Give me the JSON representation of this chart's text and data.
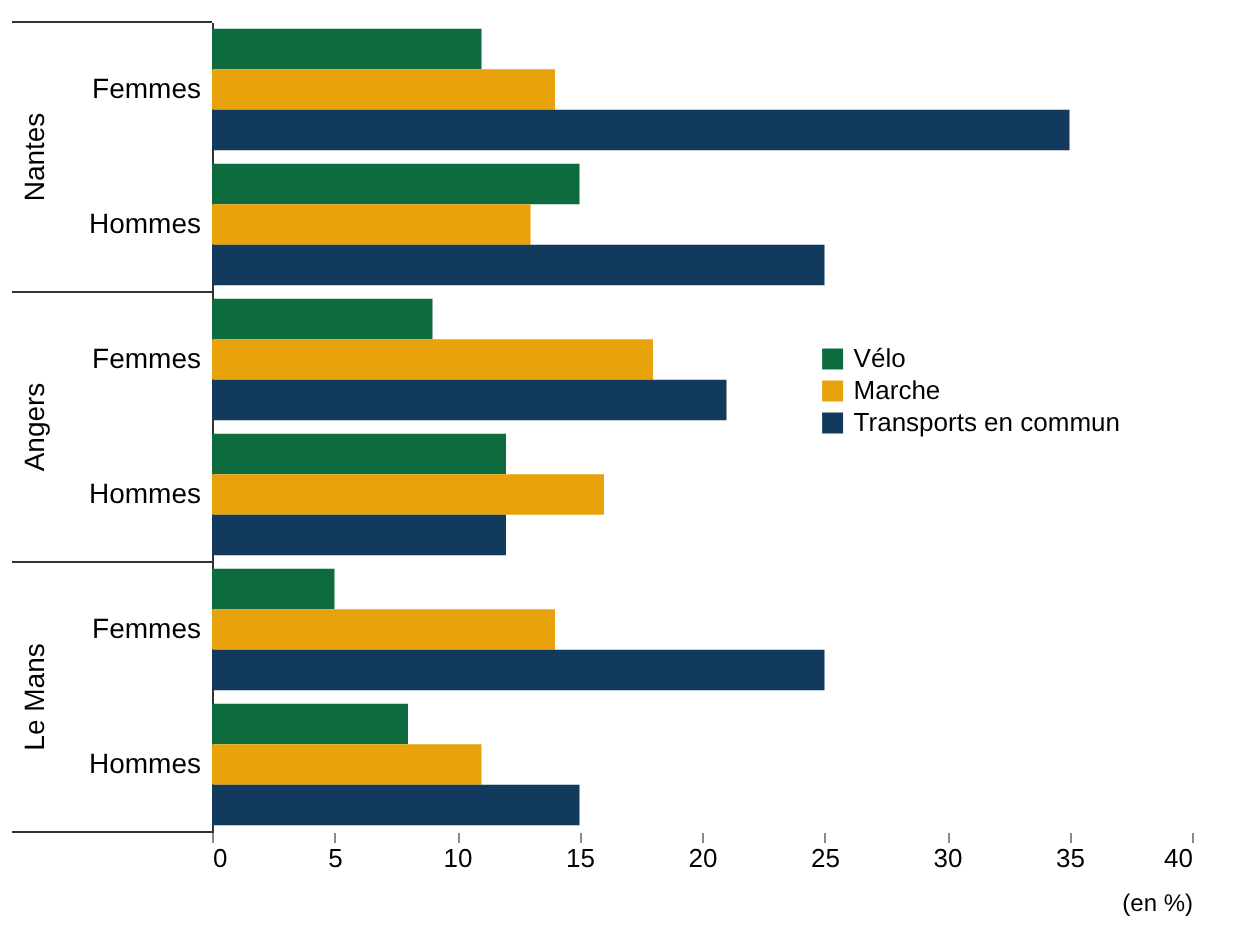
{
  "chart_data": {
    "type": "bar",
    "orientation": "horizontal",
    "categories": [
      "Femmes",
      "Hommes",
      "Femmes",
      "Hommes",
      "Femmes",
      "Hommes"
    ],
    "series": [
      {
        "name": "Vélo",
        "color": "#0e6b3d",
        "values": [
          11,
          15,
          9,
          12,
          5,
          8
        ]
      },
      {
        "name": "Marche",
        "color": "#e8a20c",
        "values": [
          14,
          13,
          18,
          16,
          14,
          11
        ]
      },
      {
        "name": "Transports en commun",
        "color": "#113a5c",
        "values": [
          35,
          25,
          21,
          12,
          25,
          15
        ]
      }
    ],
    "xlim": [
      0,
      40
    ],
    "xticks": [
      0,
      5,
      10,
      15,
      20,
      25,
      30,
      35,
      40
    ],
    "xlabel": "(en %)",
    "annotations": [
      "Nantes",
      "Angers",
      "Le Mans"
    ],
    "grid": false,
    "legend": "right"
  }
}
